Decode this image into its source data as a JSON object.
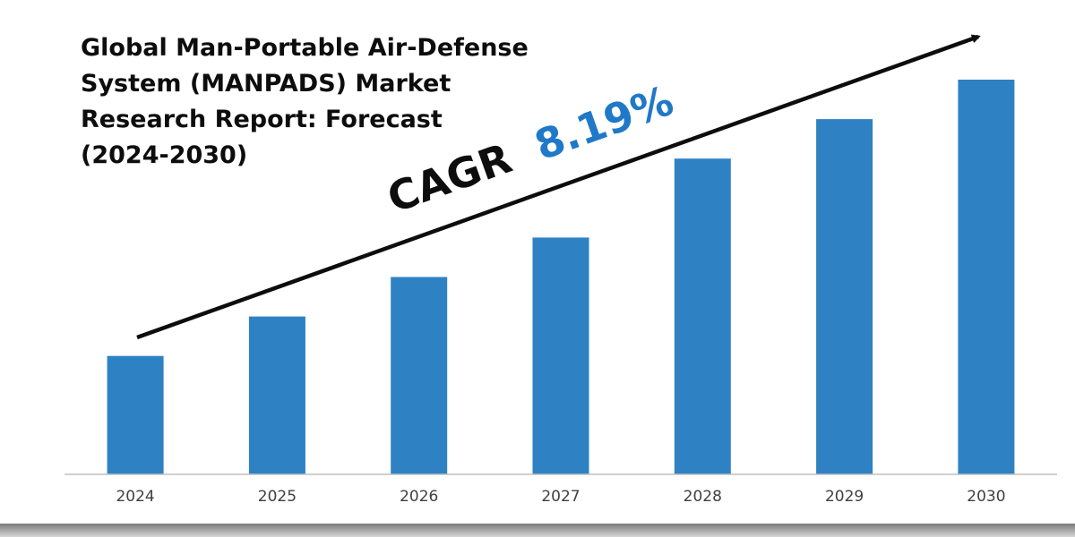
{
  "chart_data": {
    "type": "bar",
    "title_lines": [
      "Global Man-Portable Air-Defense",
      "System (MANPADS) Market",
      "Research Report: Forecast",
      "(2024-2030)"
    ],
    "categories": [
      "2024",
      "2025",
      "2026",
      "2027",
      "2028",
      "2029",
      "2030"
    ],
    "values": [
      132,
      176,
      220,
      264,
      352,
      396,
      440
    ],
    "ylim": [
      0,
      440
    ],
    "xlabel": "",
    "ylabel": "",
    "grid": false,
    "legend": "none",
    "annotation": {
      "label": "CAGR",
      "value": "8.19%"
    },
    "colors": {
      "bar": "#2e82c4",
      "cagr_value": "#1f78c8",
      "cagr_label": "#0d0d0d",
      "arrow": "#0d0d0d",
      "axis": "#bfbfbf"
    }
  }
}
